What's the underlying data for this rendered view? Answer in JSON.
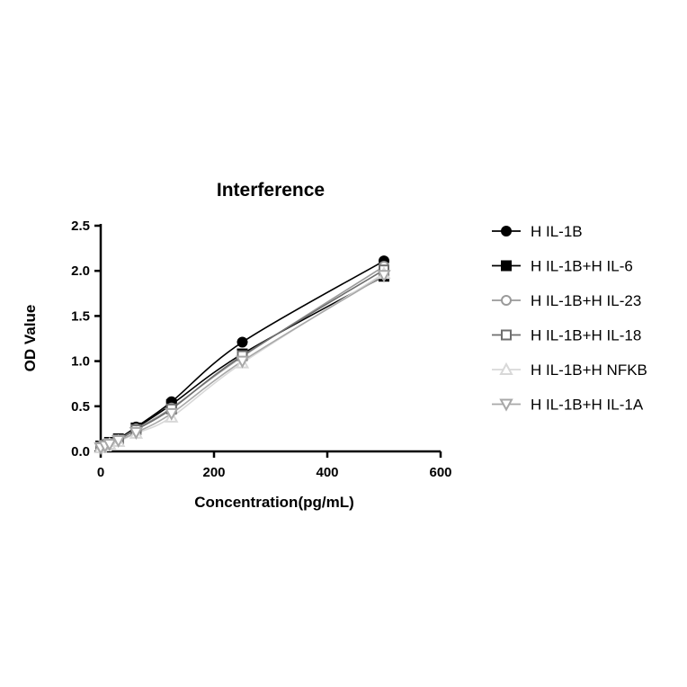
{
  "chart_data": {
    "type": "scatter",
    "title": "Interference",
    "xlabel": "Concentration(pg/mL)",
    "ylabel": "OD Value",
    "xlim": [
      0,
      600
    ],
    "ylim": [
      0,
      2.5
    ],
    "x_ticks": [
      "0",
      "200",
      "400",
      "600"
    ],
    "y_ticks": [
      "0.0",
      "0.5",
      "1.0",
      "1.5",
      "2.0",
      "2.5"
    ],
    "grid": false,
    "legend_position": "right",
    "x": [
      0,
      7.8,
      15.6,
      31.25,
      62.5,
      125,
      250,
      500
    ],
    "series": [
      {
        "name": "H IL-1B",
        "marker": "circle-filled",
        "color": "#000000",
        "values": [
          0.06,
          0.08,
          0.1,
          0.14,
          0.27,
          0.55,
          1.21,
          2.11
        ]
      },
      {
        "name": "H IL-1B+H IL-6",
        "marker": "square-filled",
        "color": "#000000",
        "values": [
          0.06,
          0.07,
          0.1,
          0.14,
          0.26,
          0.52,
          1.08,
          1.94
        ]
      },
      {
        "name": "H IL-1B+H IL-23",
        "marker": "circle-open",
        "color": "#9a9a9a",
        "values": [
          0.05,
          0.07,
          0.09,
          0.13,
          0.25,
          0.48,
          1.05,
          2.05
        ]
      },
      {
        "name": "H IL-1B+H IL-18",
        "marker": "square-open",
        "color": "#6e6e6e",
        "values": [
          0.05,
          0.07,
          0.09,
          0.13,
          0.24,
          0.47,
          1.06,
          2.01
        ]
      },
      {
        "name": "H IL-1B+H NFKB",
        "marker": "triangle-up-open",
        "color": "#d8d8d8",
        "values": [
          0.04,
          0.06,
          0.08,
          0.11,
          0.2,
          0.38,
          0.98,
          1.97
        ]
      },
      {
        "name": "H IL-1B+H IL-1A",
        "marker": "triangle-down-open",
        "color": "#a8a8a8",
        "values": [
          0.04,
          0.06,
          0.08,
          0.12,
          0.21,
          0.42,
          1.0,
          1.95
        ]
      }
    ]
  }
}
